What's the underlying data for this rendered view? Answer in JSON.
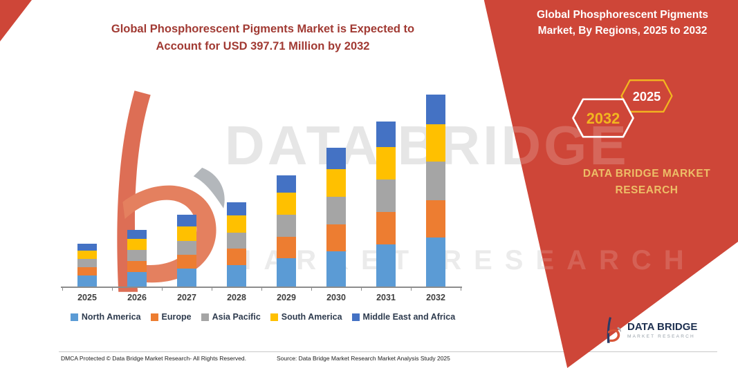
{
  "page": {
    "accent_red": "#CE4638",
    "background": "#FFFFFF"
  },
  "header": {
    "left_title_line1": "Global Phosphorescent Pigments Market is Expected to",
    "left_title_line2": "Account for USD 397.71 Million by 2032",
    "right_title_line1": "Global Phosphorescent Pigments",
    "right_title_line2": "Market, By Regions, 2025 to 2032"
  },
  "side_panel": {
    "hexagons": [
      {
        "year": "2032",
        "text_color": "#F2B61F",
        "border_color": "#FFFFFF"
      },
      {
        "year": "2025",
        "text_color": "#FFFFFF",
        "border_color": "#F2B61F"
      }
    ],
    "brand_line1": "DATA BRIDGE MARKET",
    "brand_line2": "RESEARCH"
  },
  "watermark": {
    "line1": "DATA BRIDGE",
    "line2": "MARKET RESEARCH"
  },
  "logo": {
    "name": "DATA BRIDGE",
    "subtitle": "MARKET RESEARCH"
  },
  "footer": {
    "dmca": "DMCA Protected © Data Bridge Market Research-  All Rights Reserved.",
    "source": "Source: Data Bridge Market Research  Market Analysis Study 2025"
  },
  "chart_data": {
    "type": "bar",
    "stacked": true,
    "title": "Global Phosphorescent Pigments Market is Expected to Account for USD 397.71 Million by 2032",
    "categories": [
      "2025",
      "2026",
      "2027",
      "2028",
      "2029",
      "2030",
      "2031",
      "2032"
    ],
    "series": [
      {
        "name": "North America",
        "color": "#5B9BD5",
        "values": [
          23,
          30,
          37,
          44,
          58,
          73,
          87,
          101
        ]
      },
      {
        "name": "Europe",
        "color": "#ED7D31",
        "values": [
          17,
          23,
          29,
          34,
          45,
          56,
          67,
          77
        ]
      },
      {
        "name": "Asia Pacific",
        "color": "#A5A5A5",
        "values": [
          17,
          23,
          29,
          34,
          45,
          57,
          68,
          80
        ]
      },
      {
        "name": "South America",
        "color": "#FFC000",
        "values": [
          18,
          23,
          30,
          35,
          46,
          57,
          67,
          78
        ]
      },
      {
        "name": "Middle East and Africa",
        "color": "#4472C4",
        "values": [
          14,
          18,
          23,
          27,
          36,
          44,
          53,
          61.71
        ]
      }
    ],
    "totals": [
      89,
      117,
      148,
      174,
      230,
      287,
      342,
      397.71
    ],
    "unit": "USD Million",
    "xlabel": "",
    "ylabel": "",
    "ylim": [
      0,
      410
    ],
    "gridlines": false,
    "legend_position": "bottom"
  }
}
